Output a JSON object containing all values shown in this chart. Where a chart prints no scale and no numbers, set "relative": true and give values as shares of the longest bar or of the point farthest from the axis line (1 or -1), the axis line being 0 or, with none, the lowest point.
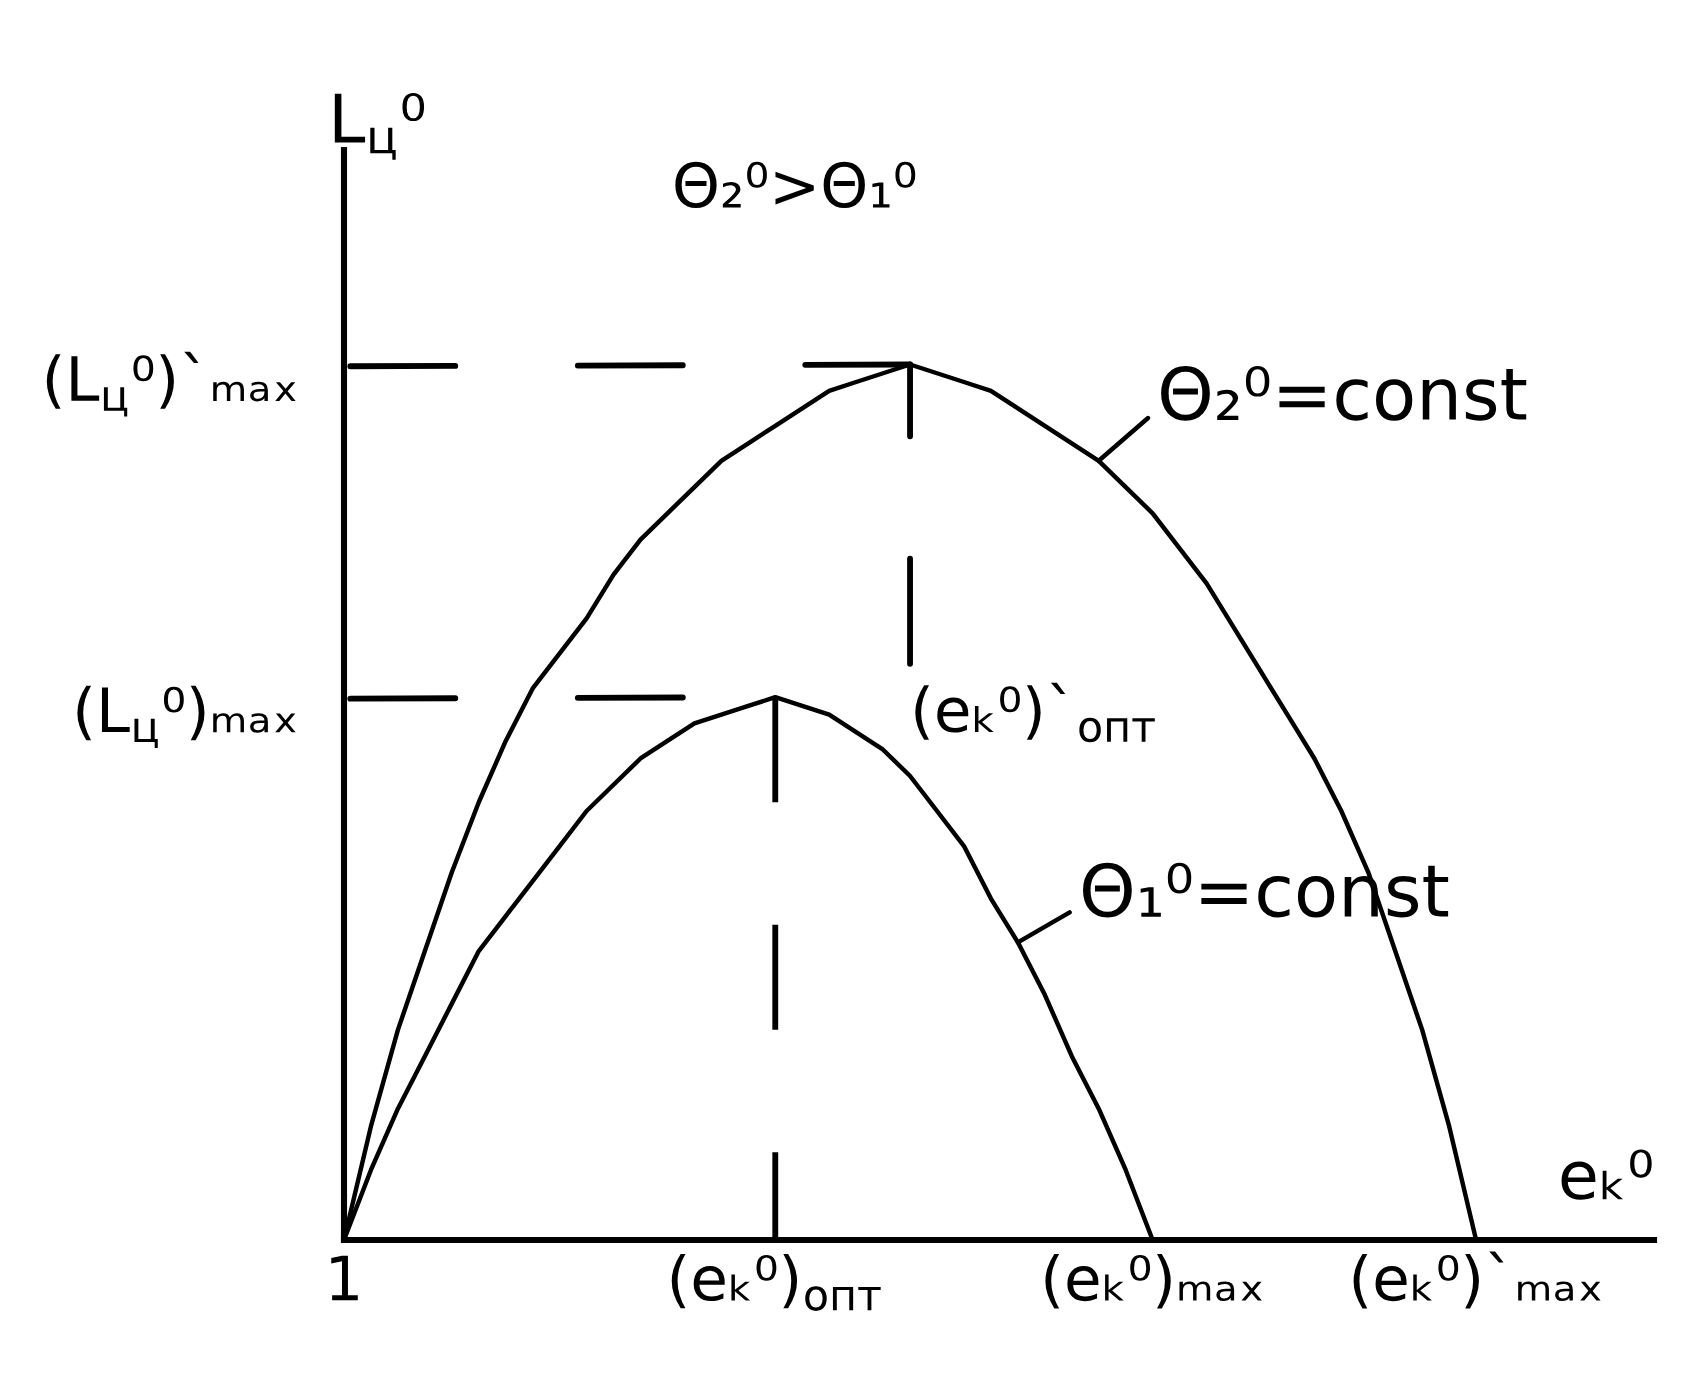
{
  "chart_data": {
    "type": "line",
    "relative": true,
    "xlabel": "eₖ⁰",
    "ylabel": "L$_{ц}$⁰",
    "annotations": [
      "Θ₂⁰>Θ₁⁰",
      "(L$_{ц}$⁰)`ₘₐₓ",
      {
        "text": "(L$_{ц}$⁰)ₘₐₓ",
        "x": "(eₖ⁰)$_{опт}$",
        "y": 0.62
      },
      "(eₖ⁰)`$_{опт}$"
    ],
    "categories": [
      "1",
      null,
      null,
      null,
      null,
      null,
      null,
      null,
      null,
      null,
      null,
      null,
      null,
      null,
      null,
      null,
      "(eₖ⁰)$_{опт}$",
      null,
      null,
      null,
      null,
      null,
      null,
      null,
      null,
      null,
      null,
      null,
      null,
      null,
      "(eₖ⁰)ₘₐₓ",
      null,
      null,
      null,
      null,
      null,
      null,
      null,
      null,
      null,
      null,
      null,
      "(eₖ⁰)`ₘₐₓ",
      null,
      null,
      null,
      null,
      null,
      null
    ],
    "line_style": "solid",
    "legend": "right",
    "ref_lines": [
      {
        "axis": "x",
        "value": "(eₖ⁰)$_{опт}$",
        "color": "#000000",
        "line_style": "dashed"
      }
    ],
    "series": [
      {
        "name": "Θ₁⁰=const",
        "color": "#000000",
        "values": [
          0,
          0.08,
          0.15,
          0.21,
          0.27,
          0.33,
          0.37,
          0.41,
          0.45,
          0.49,
          0.52,
          0.55,
          0.57,
          0.59,
          0.6,
          0.61,
          0.62,
          0.61,
          0.6,
          0.58,
          0.56,
          0.53,
          0.49,
          0.45,
          0.39,
          0.34,
          0.28,
          0.21,
          0.15,
          0.08,
          0,
          null,
          null,
          null,
          null,
          null,
          null,
          null,
          null,
          null,
          null,
          null,
          null,
          null,
          null,
          null,
          null,
          null,
          null
        ]
      },
      {
        "name": "Θ₂⁰=const",
        "color": "#000000",
        "values": [
          0,
          0.13,
          0.24,
          0.33,
          0.42,
          0.5,
          0.57,
          0.63,
          0.67,
          0.71,
          0.76,
          0.8,
          0.83,
          0.86,
          0.89,
          0.91,
          0.93,
          0.95,
          0.97,
          0.98,
          0.99,
          1,
          0.99,
          0.98,
          0.97,
          0.95,
          0.93,
          0.91,
          0.89,
          0.86,
          0.83,
          0.79,
          0.75,
          0.7,
          0.65,
          0.6,
          0.55,
          0.49,
          0.42,
          0.33,
          0.24,
          0.13,
          0,
          null,
          null,
          null,
          null,
          null,
          null
        ]
      }
    ]
  }
}
